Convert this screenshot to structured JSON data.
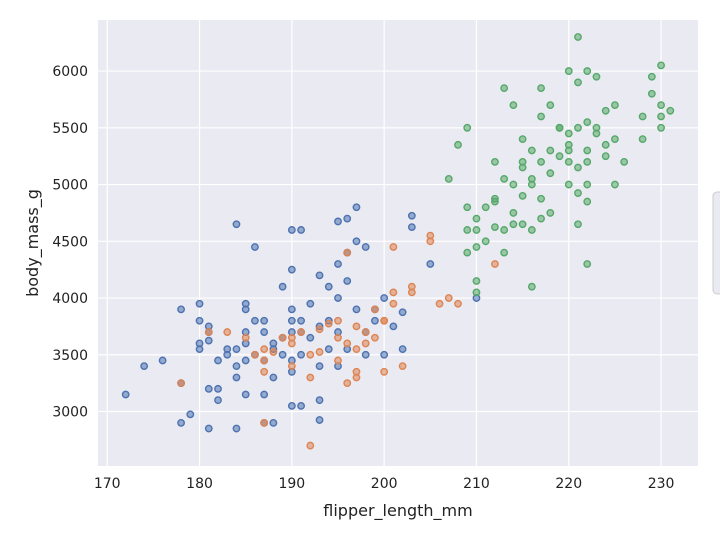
{
  "chart_data": {
    "type": "scatter",
    "title": "",
    "xlabel": "flipper_length_mm",
    "ylabel": "body_mass_g",
    "xlim": [
      169,
      234
    ],
    "ylim": [
      2520,
      6450
    ],
    "xticks": [
      170,
      180,
      190,
      200,
      210,
      220,
      230
    ],
    "yticks": [
      3000,
      3500,
      4000,
      4500,
      5000,
      5500,
      6000
    ],
    "grid": true,
    "legend": "right (clipped, entries not visible)",
    "series": [
      {
        "color": "#4c72b0",
        "points": [
          [
            172,
            3150
          ],
          [
            174,
            3400
          ],
          [
            176,
            3450
          ],
          [
            178,
            3900
          ],
          [
            178,
            3250
          ],
          [
            178,
            2900
          ],
          [
            179,
            2975
          ],
          [
            180,
            3950
          ],
          [
            180,
            3800
          ],
          [
            180,
            3600
          ],
          [
            180,
            3550
          ],
          [
            181,
            3750
          ],
          [
            181,
            3700
          ],
          [
            181,
            3625
          ],
          [
            181,
            3200
          ],
          [
            181,
            2850
          ],
          [
            182,
            3450
          ],
          [
            182,
            3200
          ],
          [
            182,
            3100
          ],
          [
            183,
            3550
          ],
          [
            183,
            3500
          ],
          [
            184,
            4650
          ],
          [
            184,
            3550
          ],
          [
            184,
            3400
          ],
          [
            184,
            3300
          ],
          [
            184,
            2850
          ],
          [
            185,
            3900
          ],
          [
            185,
            3950
          ],
          [
            185,
            3700
          ],
          [
            185,
            3600
          ],
          [
            185,
            3450
          ],
          [
            185,
            3150
          ],
          [
            186,
            4450
          ],
          [
            186,
            3800
          ],
          [
            186,
            3500
          ],
          [
            187,
            3800
          ],
          [
            187,
            3700
          ],
          [
            187,
            3450
          ],
          [
            187,
            3150
          ],
          [
            187,
            2900
          ],
          [
            188,
            3600
          ],
          [
            188,
            3550
          ],
          [
            188,
            3300
          ],
          [
            188,
            2900
          ],
          [
            189,
            4100
          ],
          [
            189,
            3650
          ],
          [
            189,
            3500
          ],
          [
            190,
            4600
          ],
          [
            190,
            4250
          ],
          [
            190,
            3900
          ],
          [
            190,
            3800
          ],
          [
            190,
            3700
          ],
          [
            190,
            3450
          ],
          [
            190,
            3350
          ],
          [
            190,
            3050
          ],
          [
            191,
            4600
          ],
          [
            191,
            3800
          ],
          [
            191,
            3700
          ],
          [
            191,
            3500
          ],
          [
            191,
            3050
          ],
          [
            192,
            3950
          ],
          [
            192,
            3650
          ],
          [
            193,
            4200
          ],
          [
            193,
            3750
          ],
          [
            193,
            3400
          ],
          [
            193,
            3100
          ],
          [
            193,
            2925
          ],
          [
            194,
            4100
          ],
          [
            194,
            3800
          ],
          [
            194,
            3550
          ],
          [
            195,
            4675
          ],
          [
            195,
            4300
          ],
          [
            195,
            4000
          ],
          [
            195,
            3700
          ],
          [
            195,
            3400
          ],
          [
            196,
            4700
          ],
          [
            196,
            4400
          ],
          [
            196,
            4150
          ],
          [
            196,
            3550
          ],
          [
            197,
            4800
          ],
          [
            197,
            4500
          ],
          [
            197,
            3900
          ],
          [
            198,
            4450
          ],
          [
            198,
            3700
          ],
          [
            198,
            3500
          ],
          [
            199,
            3900
          ],
          [
            199,
            3800
          ],
          [
            200,
            4000
          ],
          [
            200,
            3500
          ],
          [
            201,
            3750
          ],
          [
            202,
            3875
          ],
          [
            202,
            3550
          ],
          [
            203,
            4725
          ],
          [
            203,
            4625
          ],
          [
            205,
            4300
          ],
          [
            210,
            4000
          ]
        ]
      },
      {
        "color": "#dd8452",
        "points": [
          [
            178,
            3250
          ],
          [
            181,
            3700
          ],
          [
            183,
            3700
          ],
          [
            185,
            3650
          ],
          [
            186,
            3500
          ],
          [
            187,
            3550
          ],
          [
            187,
            3450
          ],
          [
            187,
            3350
          ],
          [
            188,
            3525
          ],
          [
            189,
            3650
          ],
          [
            190,
            3650
          ],
          [
            190,
            3600
          ],
          [
            190,
            3400
          ],
          [
            191,
            3700
          ],
          [
            192,
            3500
          ],
          [
            192,
            3300
          ],
          [
            193,
            3725
          ],
          [
            193,
            3525
          ],
          [
            194,
            3775
          ],
          [
            195,
            3800
          ],
          [
            195,
            3650
          ],
          [
            195,
            3450
          ],
          [
            196,
            4400
          ],
          [
            196,
            3600
          ],
          [
            196,
            3250
          ],
          [
            197,
            3750
          ],
          [
            197,
            3550
          ],
          [
            197,
            3300
          ],
          [
            198,
            3700
          ],
          [
            198,
            3600
          ],
          [
            199,
            3900
          ],
          [
            199,
            3650
          ],
          [
            200,
            3800
          ],
          [
            201,
            4050
          ],
          [
            201,
            3950
          ],
          [
            201,
            4450
          ],
          [
            202,
            3400
          ],
          [
            203,
            4050
          ],
          [
            203,
            4100
          ],
          [
            205,
            4550
          ],
          [
            205,
            4500
          ],
          [
            206,
            3950
          ],
          [
            207,
            4000
          ],
          [
            208,
            3950
          ],
          [
            212,
            4300
          ],
          [
            192,
            2700
          ],
          [
            200,
            3350
          ],
          [
            187,
            2900
          ],
          [
            197,
            3350
          ],
          [
            200,
            3800
          ]
        ]
      },
      {
        "color": "#55a868",
        "points": [
          [
            207,
            5050
          ],
          [
            208,
            5350
          ],
          [
            209,
            4600
          ],
          [
            209,
            5500
          ],
          [
            209,
            4400
          ],
          [
            209,
            4800
          ],
          [
            210,
            4700
          ],
          [
            210,
            4600
          ],
          [
            210,
            4450
          ],
          [
            210,
            4150
          ],
          [
            210,
            4050
          ],
          [
            211,
            4800
          ],
          [
            211,
            4500
          ],
          [
            212,
            4850
          ],
          [
            212,
            5200
          ],
          [
            212,
            4875
          ],
          [
            212,
            4625
          ],
          [
            213,
            5050
          ],
          [
            213,
            4600
          ],
          [
            213,
            4400
          ],
          [
            213,
            5850
          ],
          [
            214,
            4750
          ],
          [
            214,
            5000
          ],
          [
            214,
            5700
          ],
          [
            214,
            4650
          ],
          [
            215,
            5150
          ],
          [
            215,
            5400
          ],
          [
            215,
            4900
          ],
          [
            215,
            4650
          ],
          [
            215,
            5200
          ],
          [
            216,
            4600
          ],
          [
            216,
            5050
          ],
          [
            216,
            5000
          ],
          [
            216,
            5300
          ],
          [
            216,
            4100
          ],
          [
            217,
            4875
          ],
          [
            217,
            5200
          ],
          [
            217,
            4700
          ],
          [
            217,
            5600
          ],
          [
            217,
            5850
          ],
          [
            218,
            5700
          ],
          [
            218,
            5100
          ],
          [
            218,
            5300
          ],
          [
            218,
            4750
          ],
          [
            219,
            5250
          ],
          [
            219,
            5500
          ],
          [
            220,
            6000
          ],
          [
            220,
            5000
          ],
          [
            220,
            5200
          ],
          [
            220,
            5350
          ],
          [
            220,
            5450
          ],
          [
            221,
            4650
          ],
          [
            221,
            5500
          ],
          [
            221,
            5900
          ],
          [
            221,
            5150
          ],
          [
            221,
            4925
          ],
          [
            222,
            5300
          ],
          [
            222,
            4850
          ],
          [
            222,
            5200
          ],
          [
            222,
            6000
          ],
          [
            222,
            5550
          ],
          [
            222,
            4300
          ],
          [
            223,
            5950
          ],
          [
            223,
            5450
          ],
          [
            223,
            5500
          ],
          [
            224,
            5650
          ],
          [
            224,
            5250
          ],
          [
            224,
            5350
          ],
          [
            225,
            5400
          ],
          [
            225,
            5700
          ],
          [
            225,
            5000
          ],
          [
            226,
            5200
          ],
          [
            228,
            5400
          ],
          [
            228,
            5600
          ],
          [
            229,
            5950
          ],
          [
            229,
            5800
          ],
          [
            230,
            6050
          ],
          [
            230,
            5500
          ],
          [
            230,
            5600
          ],
          [
            230,
            5700
          ],
          [
            231,
            5650
          ],
          [
            221,
            6300
          ],
          [
            222,
            5000
          ],
          [
            219,
            5500
          ],
          [
            220,
            5300
          ]
        ]
      }
    ]
  }
}
